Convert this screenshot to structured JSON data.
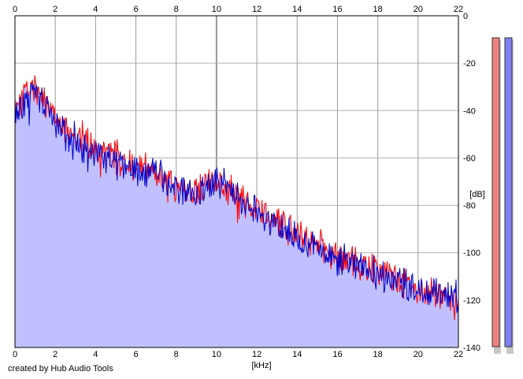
{
  "chart_data": {
    "type": "line",
    "x_unit_label": "[kHz]",
    "y_unit_label": "[dB]",
    "xlim": [
      0,
      22
    ],
    "ylim": [
      -140,
      0
    ],
    "x_ticks": [
      "0",
      "2",
      "4",
      "6",
      "8",
      "10",
      "12",
      "14",
      "16",
      "18",
      "20",
      "22"
    ],
    "y_ticks": [
      "0",
      "-20",
      "-40",
      "-60",
      "-80",
      "-100",
      "-120",
      "-140"
    ],
    "grid": true,
    "fill_color": "#c0c0ff",
    "series": [
      {
        "color": "#ff0000",
        "x": [
          0,
          0.5,
          1,
          1.5,
          2,
          2.5,
          3,
          3.5,
          4,
          4.5,
          5,
          5.5,
          6,
          6.5,
          7,
          7.5,
          8,
          8.5,
          9,
          9.5,
          10,
          10.5,
          11,
          11.5,
          12,
          12.5,
          13,
          13.5,
          14,
          14.5,
          15,
          15.5,
          16,
          16.5,
          17,
          17.5,
          18,
          18.5,
          19,
          19.5,
          20,
          20.5,
          21,
          21.5,
          22
        ],
        "y": [
          -40,
          -32,
          -30,
          -36,
          -42,
          -47,
          -50,
          -53,
          -55,
          -57,
          -59,
          -62,
          -63,
          -64,
          -67,
          -69,
          -73,
          -74,
          -74,
          -71,
          -71,
          -72,
          -76,
          -78,
          -81,
          -84,
          -86,
          -89,
          -91,
          -94,
          -96,
          -99,
          -101,
          -102,
          -104,
          -106,
          -108,
          -110,
          -112,
          -114,
          -116,
          -117,
          -118,
          -119,
          -120
        ]
      },
      {
        "color": "#0000cc",
        "x": [
          0,
          0.5,
          1,
          1.5,
          2,
          2.5,
          3,
          3.5,
          4,
          4.5,
          5,
          5.5,
          6,
          6.5,
          7,
          7.5,
          8,
          8.5,
          9,
          9.5,
          10,
          10.5,
          11,
          11.5,
          12,
          12.5,
          13,
          13.5,
          14,
          14.5,
          15,
          15.5,
          16,
          16.5,
          17,
          17.5,
          18,
          18.5,
          19,
          19.5,
          20,
          20.5,
          21,
          21.5,
          22
        ],
        "y": [
          -42,
          -36,
          -34,
          -39,
          -44,
          -49,
          -52,
          -56,
          -58,
          -61,
          -62,
          -64,
          -66,
          -66,
          -66,
          -68,
          -72,
          -73,
          -74,
          -72,
          -70,
          -71,
          -76,
          -79,
          -82,
          -85,
          -88,
          -91,
          -94,
          -96,
          -98,
          -100,
          -102,
          -104,
          -105,
          -107,
          -109,
          -110,
          -112,
          -114,
          -116,
          -117,
          -117,
          -118,
          -119
        ]
      }
    ],
    "level_meters": [
      {
        "color": "#f08080"
      },
      {
        "color": "#8080f0"
      }
    ]
  },
  "credit": "created by Hub Audio Tools"
}
